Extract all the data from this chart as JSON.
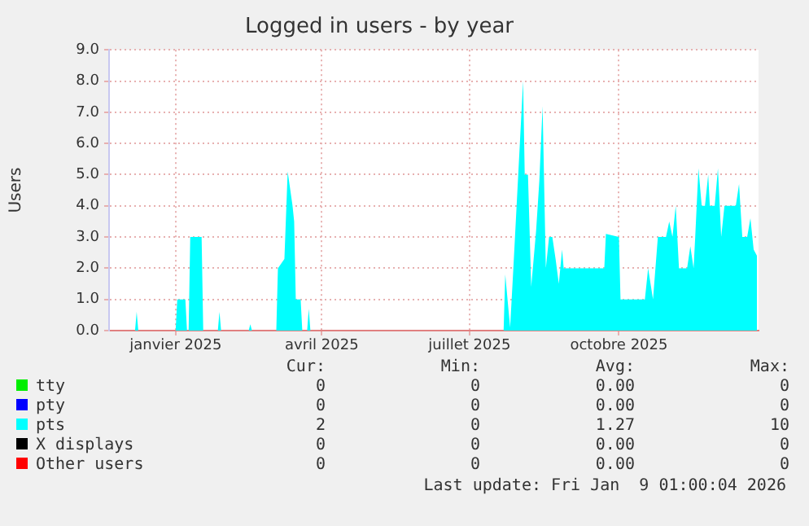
{
  "chart_data": {
    "type": "area",
    "title": "Logged in users - by year",
    "ylabel": "Users",
    "xlim": [
      "2024-11-21",
      "2025-12-26"
    ],
    "xticks": [
      {
        "value": "2025-01-01",
        "label": "janvier 2025"
      },
      {
        "value": "2025-04-01",
        "label": "avril 2025"
      },
      {
        "value": "2025-07-01",
        "label": "juillet 2025"
      },
      {
        "value": "2025-10-01",
        "label": "octobre 2025"
      }
    ],
    "ylim": [
      0,
      9
    ],
    "yticks": [
      {
        "value": 0,
        "label": "0.0"
      },
      {
        "value": 1,
        "label": "1.0"
      },
      {
        "value": 2,
        "label": "2.0"
      },
      {
        "value": 3,
        "label": "3.0"
      },
      {
        "value": 4,
        "label": "4.0"
      },
      {
        "value": 5,
        "label": "5.0"
      },
      {
        "value": 6,
        "label": "6.0"
      },
      {
        "value": 7,
        "label": "7.0"
      },
      {
        "value": 8,
        "label": "8.0"
      },
      {
        "value": 9,
        "label": "9.0"
      }
    ],
    "grid": true,
    "legend": "bottom",
    "series": [
      {
        "name": "tty",
        "color": "#00ee00",
        "values": [
          null
        ]
      },
      {
        "name": "pty",
        "color": "#0000ff",
        "values": [
          null
        ]
      },
      {
        "name": "pts",
        "color": "#00ffff",
        "x": [
          "2024-11-21",
          "2024-12-07",
          "2024-12-08",
          "2024-12-09",
          "2025-01-01",
          "2025-01-02",
          "2025-01-07",
          "2025-01-08",
          "2025-01-09",
          "2025-01-10",
          "2025-01-17",
          "2025-01-18",
          "2025-01-27",
          "2025-01-28",
          "2025-01-29",
          "2025-02-15",
          "2025-02-16",
          "2025-02-17",
          "2025-03-04",
          "2025-03-05",
          "2025-03-09",
          "2025-03-11",
          "2025-03-14",
          "2025-03-15",
          "2025-03-16",
          "2025-03-19",
          "2025-03-20",
          "2025-03-23",
          "2025-03-24",
          "2025-03-25",
          "2025-07-22",
          "2025-07-23",
          "2025-07-26",
          "2025-07-28",
          "2025-07-31",
          "2025-08-03",
          "2025-08-04",
          "2025-08-06",
          "2025-08-08",
          "2025-08-11",
          "2025-08-13",
          "2025-08-15",
          "2025-08-17",
          "2025-08-19",
          "2025-08-21",
          "2025-08-23",
          "2025-08-25",
          "2025-08-27",
          "2025-08-28",
          "2025-09-22",
          "2025-09-23",
          "2025-10-01",
          "2025-10-02",
          "2025-10-17",
          "2025-10-19",
          "2025-10-22",
          "2025-10-25",
          "2025-10-30",
          "2025-11-01",
          "2025-11-03",
          "2025-11-05",
          "2025-11-07",
          "2025-11-12",
          "2025-11-14",
          "2025-11-16",
          "2025-11-17",
          "2025-11-19",
          "2025-11-21",
          "2025-11-23",
          "2025-11-25",
          "2025-11-26",
          "2025-11-29",
          "2025-12-01",
          "2025-12-03",
          "2025-12-05",
          "2025-12-12",
          "2025-12-14",
          "2025-12-16",
          "2025-12-19",
          "2025-12-21",
          "2025-12-23",
          "2025-12-25"
        ],
        "values": [
          0,
          0,
          0.6,
          0,
          0,
          1.0,
          1.0,
          0,
          0,
          3.0,
          3.0,
          0,
          0,
          0.6,
          0,
          0,
          0.2,
          0,
          0,
          2.0,
          2.3,
          5.1,
          4.0,
          3.5,
          1.0,
          1.0,
          0,
          0,
          0.7,
          0,
          0,
          1.8,
          0.1,
          2.0,
          5.0,
          8.0,
          5.0,
          5.0,
          1.4,
          3.2,
          4.8,
          7.2,
          2.0,
          3.0,
          3.0,
          2.3,
          1.5,
          2.6,
          2.0,
          2.0,
          3.1,
          3.0,
          1.0,
          1.0,
          2.0,
          1.0,
          3.0,
          3.0,
          3.5,
          3.0,
          4.0,
          2.0,
          2.0,
          2.7,
          2.0,
          3.0,
          5.2,
          4.0,
          4.0,
          5.0,
          4.0,
          4.0,
          5.2,
          3.0,
          4.0,
          4.0,
          4.7,
          3.0,
          3.0,
          3.6,
          2.6,
          2.4
        ]
      },
      {
        "name": "X displays",
        "color": "#000000",
        "values": [
          null
        ]
      },
      {
        "name": "Other users",
        "color": "#ff0000",
        "values": [
          null
        ]
      }
    ],
    "annotations": [
      "Cur:",
      "Min:",
      "Avg:",
      "Max:",
      "0",
      "0",
      "0.00",
      "0",
      "0",
      "0",
      "0.00",
      "0",
      "2",
      "0",
      "1.27",
      "10",
      "0",
      "0",
      "0.00",
      "0",
      "0",
      "0",
      "0.00",
      "0",
      "Last update: Fri Jan  9 01:00:04 2026"
    ]
  }
}
